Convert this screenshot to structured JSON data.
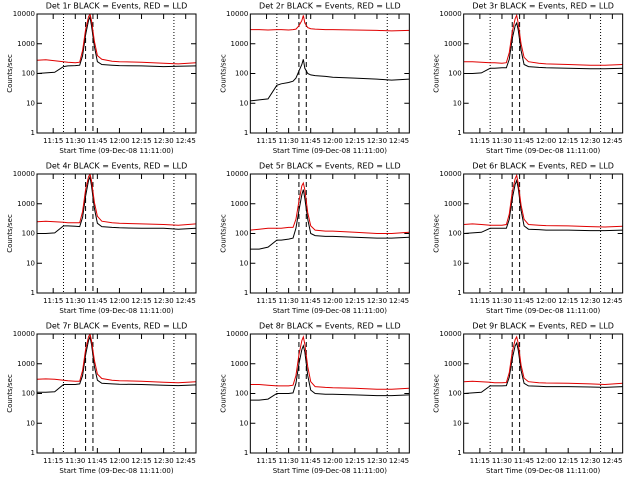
{
  "chart_data": [
    {
      "type": "line",
      "title": "Det 1r BLACK = Events, RED = LLD",
      "xlabel": "Start Time (09-Dec-08 11:11:00)",
      "ylabel": "Counts/sec",
      "ylog": true,
      "xlim": [
        "11:04",
        "12:52"
      ],
      "xticks": [
        "11:15",
        "11:30",
        "11:45",
        "12:00",
        "12:15",
        "12:30",
        "12:45"
      ],
      "ylim": [
        1,
        10000
      ],
      "yticks": [
        1,
        10,
        100,
        1000,
        10000
      ],
      "dotted_lines": [
        "11:22",
        "12:37"
      ],
      "dashed_lines": [
        "11:37",
        "11:42"
      ],
      "x": [
        "11:04",
        "11:10",
        "11:16",
        "11:22",
        "11:25",
        "11:30",
        "11:33",
        "11:35",
        "11:37",
        "11:39",
        "11:40",
        "11:41",
        "11:43",
        "11:45",
        "11:48",
        "11:55",
        "12:00",
        "12:15",
        "12:30",
        "12:40",
        "12:52"
      ],
      "series": [
        {
          "name": "Events",
          "color": "#000000",
          "values": [
            100,
            105,
            110,
            170,
            180,
            185,
            190,
            400,
            2000,
            6000,
            8000,
            4000,
            800,
            250,
            200,
            190,
            185,
            180,
            170,
            175,
            180
          ]
        },
        {
          "name": "LLD",
          "color": "#e00000",
          "values": [
            280,
            290,
            270,
            250,
            240,
            230,
            240,
            600,
            3000,
            8000,
            10000,
            6000,
            1200,
            400,
            300,
            260,
            250,
            240,
            220,
            210,
            230
          ]
        }
      ]
    },
    {
      "type": "line",
      "title": "Det 2r BLACK = Events, RED = LLD",
      "xlabel": "Start Time (09-Dec-08 11:11:00)",
      "ylabel": "Counts/sec",
      "ylog": true,
      "xlim": [
        "11:04",
        "12:52"
      ],
      "xticks": [
        "11:15",
        "11:30",
        "11:45",
        "12:00",
        "12:15",
        "12:30",
        "12:45"
      ],
      "ylim": [
        1,
        10000
      ],
      "yticks": [
        1,
        10,
        100,
        1000,
        10000
      ],
      "dotted_lines": [
        "11:22",
        "12:37"
      ],
      "dashed_lines": [
        "11:37",
        "11:42"
      ],
      "x": [
        "11:04",
        "11:10",
        "11:16",
        "11:22",
        "11:25",
        "11:30",
        "11:33",
        "11:35",
        "11:37",
        "11:39",
        "11:40",
        "11:41",
        "11:43",
        "11:45",
        "11:48",
        "11:55",
        "12:00",
        "12:15",
        "12:30",
        "12:40",
        "12:52"
      ],
      "series": [
        {
          "name": "Events",
          "color": "#000000",
          "values": [
            12,
            13,
            14,
            40,
            45,
            50,
            55,
            70,
            120,
            200,
            300,
            150,
            100,
            90,
            85,
            80,
            75,
            70,
            65,
            60,
            65
          ]
        },
        {
          "name": "LLD",
          "color": "#e00000",
          "values": [
            3000,
            3000,
            2900,
            3000,
            3000,
            2900,
            3000,
            3100,
            4000,
            6000,
            9000,
            5000,
            3500,
            3200,
            3100,
            3000,
            3000,
            2900,
            2800,
            2700,
            2800
          ]
        }
      ]
    },
    {
      "type": "line",
      "title": "Det 3r BLACK = Events, RED = LLD",
      "xlabel": "Start Time (09-Dec-08 11:11:00)",
      "ylabel": "Counts/sec",
      "ylog": true,
      "xlim": [
        "11:04",
        "12:52"
      ],
      "xticks": [
        "11:15",
        "11:30",
        "11:45",
        "12:00",
        "12:15",
        "12:30",
        "12:45"
      ],
      "ylim": [
        1,
        10000
      ],
      "yticks": [
        1,
        10,
        100,
        1000,
        10000
      ],
      "dotted_lines": [
        "11:22",
        "12:37"
      ],
      "dashed_lines": [
        "11:37",
        "11:42"
      ],
      "x": [
        "11:04",
        "11:10",
        "11:16",
        "11:22",
        "11:25",
        "11:30",
        "11:33",
        "11:35",
        "11:37",
        "11:39",
        "11:40",
        "11:41",
        "11:43",
        "11:45",
        "11:48",
        "11:55",
        "12:00",
        "12:15",
        "12:30",
        "12:40",
        "12:52"
      ],
      "series": [
        {
          "name": "Events",
          "color": "#000000",
          "values": [
            100,
            100,
            105,
            150,
            150,
            155,
            155,
            300,
            1500,
            4000,
            5000,
            3000,
            600,
            200,
            170,
            160,
            155,
            150,
            145,
            145,
            150
          ]
        },
        {
          "name": "LLD",
          "color": "#e00000",
          "values": [
            250,
            250,
            240,
            230,
            230,
            220,
            230,
            500,
            2500,
            7000,
            9000,
            5000,
            1000,
            350,
            250,
            220,
            210,
            200,
            190,
            190,
            200
          ]
        }
      ]
    },
    {
      "type": "line",
      "title": "Det 4r BLACK = Events, RED = LLD",
      "xlabel": "Start Time (09-Dec-08 11:11:00)",
      "ylabel": "Counts/sec",
      "ylog": true,
      "xlim": [
        "11:04",
        "12:52"
      ],
      "xticks": [
        "11:15",
        "11:30",
        "11:45",
        "12:00",
        "12:15",
        "12:30",
        "12:45"
      ],
      "ylim": [
        1,
        10000
      ],
      "yticks": [
        1,
        10,
        100,
        1000,
        10000
      ],
      "dotted_lines": [
        "11:22",
        "12:37"
      ],
      "dashed_lines": [
        "11:37",
        "11:42"
      ],
      "x": [
        "11:04",
        "11:10",
        "11:16",
        "11:22",
        "11:25",
        "11:30",
        "11:33",
        "11:35",
        "11:37",
        "11:39",
        "11:40",
        "11:41",
        "11:43",
        "11:45",
        "11:48",
        "11:55",
        "12:00",
        "12:15",
        "12:30",
        "12:40",
        "12:52"
      ],
      "series": [
        {
          "name": "Events",
          "color": "#000000",
          "values": [
            100,
            100,
            105,
            180,
            180,
            175,
            170,
            350,
            1800,
            6000,
            8000,
            4000,
            700,
            220,
            170,
            160,
            155,
            150,
            150,
            140,
            150
          ]
        },
        {
          "name": "LLD",
          "color": "#e00000",
          "values": [
            250,
            260,
            250,
            240,
            230,
            230,
            230,
            550,
            3000,
            8000,
            10000,
            6000,
            1100,
            380,
            260,
            230,
            220,
            210,
            200,
            190,
            210
          ]
        }
      ]
    },
    {
      "type": "line",
      "title": "Det 5r BLACK = Events, RED = LLD",
      "xlabel": "Start Time (09-Dec-08 11:11:00)",
      "ylabel": "Counts/sec",
      "ylog": true,
      "xlim": [
        "11:04",
        "12:52"
      ],
      "xticks": [
        "11:15",
        "11:30",
        "11:45",
        "12:00",
        "12:15",
        "12:30",
        "12:45"
      ],
      "ylim": [
        1,
        10000
      ],
      "yticks": [
        1,
        10,
        100,
        1000,
        10000
      ],
      "dotted_lines": [
        "11:22",
        "12:37"
      ],
      "dashed_lines": [
        "11:37",
        "11:42"
      ],
      "x": [
        "11:04",
        "11:10",
        "11:16",
        "11:22",
        "11:25",
        "11:30",
        "11:33",
        "11:35",
        "11:37",
        "11:39",
        "11:40",
        "11:41",
        "11:43",
        "11:45",
        "11:48",
        "11:55",
        "12:00",
        "12:15",
        "12:30",
        "12:40",
        "12:52"
      ],
      "series": [
        {
          "name": "Events",
          "color": "#000000",
          "values": [
            30,
            30,
            35,
            60,
            60,
            65,
            70,
            150,
            600,
            2000,
            3000,
            1500,
            300,
            100,
            85,
            80,
            80,
            75,
            70,
            70,
            75
          ]
        },
        {
          "name": "LLD",
          "color": "#e00000",
          "values": [
            130,
            140,
            150,
            150,
            150,
            160,
            160,
            300,
            1200,
            4000,
            5000,
            3000,
            500,
            180,
            130,
            120,
            120,
            110,
            100,
            100,
            110
          ]
        }
      ]
    },
    {
      "type": "line",
      "title": "Det 6r BLACK = Events, RED = LLD",
      "xlabel": "Start Time (09-Dec-08 11:11:00)",
      "ylabel": "Counts/sec",
      "ylog": true,
      "xlim": [
        "11:04",
        "12:52"
      ],
      "xticks": [
        "11:15",
        "11:30",
        "11:45",
        "12:00",
        "12:15",
        "12:30",
        "12:45"
      ],
      "ylim": [
        1,
        10000
      ],
      "yticks": [
        1,
        10,
        100,
        1000,
        10000
      ],
      "dotted_lines": [
        "11:22",
        "12:37"
      ],
      "dashed_lines": [
        "11:37",
        "11:42"
      ],
      "x": [
        "11:04",
        "11:10",
        "11:16",
        "11:22",
        "11:25",
        "11:30",
        "11:33",
        "11:35",
        "11:37",
        "11:39",
        "11:40",
        "11:41",
        "11:43",
        "11:45",
        "11:48",
        "11:55",
        "12:00",
        "12:15",
        "12:30",
        "12:40",
        "12:52"
      ],
      "series": [
        {
          "name": "Events",
          "color": "#000000",
          "values": [
            100,
            105,
            110,
            150,
            150,
            150,
            150,
            300,
            1500,
            4500,
            6000,
            3500,
            600,
            180,
            140,
            135,
            130,
            130,
            125,
            125,
            130
          ]
        },
        {
          "name": "LLD",
          "color": "#e00000",
          "values": [
            200,
            210,
            200,
            190,
            190,
            190,
            200,
            450,
            2500,
            7000,
            9000,
            5000,
            900,
            300,
            200,
            190,
            185,
            180,
            170,
            165,
            175
          ]
        }
      ]
    },
    {
      "type": "line",
      "title": "Det 7r BLACK = Events, RED = LLD",
      "xlabel": "Start Time (09-Dec-08 11:11:00)",
      "ylabel": "Counts/sec",
      "ylog": true,
      "xlim": [
        "11:04",
        "12:52"
      ],
      "xticks": [
        "11:15",
        "11:30",
        "11:45",
        "12:00",
        "12:15",
        "12:30",
        "12:45"
      ],
      "ylim": [
        1,
        10000
      ],
      "yticks": [
        1,
        10,
        100,
        1000,
        10000
      ],
      "dotted_lines": [
        "11:22",
        "12:37"
      ],
      "dashed_lines": [
        "11:37",
        "11:42"
      ],
      "x": [
        "11:04",
        "11:10",
        "11:16",
        "11:22",
        "11:25",
        "11:30",
        "11:33",
        "11:35",
        "11:37",
        "11:39",
        "11:40",
        "11:41",
        "11:43",
        "11:45",
        "11:48",
        "11:55",
        "12:00",
        "12:15",
        "12:30",
        "12:40",
        "12:52"
      ],
      "series": [
        {
          "name": "Events",
          "color": "#000000",
          "values": [
            110,
            110,
            115,
            200,
            200,
            200,
            210,
            400,
            2000,
            6000,
            8000,
            4500,
            800,
            280,
            220,
            210,
            205,
            200,
            190,
            185,
            195
          ]
        },
        {
          "name": "LLD",
          "color": "#e00000",
          "values": [
            300,
            310,
            300,
            280,
            270,
            260,
            260,
            600,
            3000,
            8000,
            10000,
            6000,
            1300,
            450,
            320,
            280,
            270,
            260,
            240,
            230,
            250
          ]
        }
      ]
    },
    {
      "type": "line",
      "title": "Det 8r BLACK = Events, RED = LLD",
      "xlabel": "Start Time (09-Dec-08 11:11:00)",
      "ylabel": "Counts/sec",
      "ylog": true,
      "xlim": [
        "11:04",
        "12:52"
      ],
      "xticks": [
        "11:15",
        "11:30",
        "11:45",
        "12:00",
        "12:15",
        "12:30",
        "12:45"
      ],
      "ylim": [
        1,
        10000
      ],
      "yticks": [
        1,
        10,
        100,
        1000,
        10000
      ],
      "dotted_lines": [
        "11:22",
        "12:37"
      ],
      "dashed_lines": [
        "11:37",
        "11:42"
      ],
      "x": [
        "11:04",
        "11:10",
        "11:16",
        "11:22",
        "11:25",
        "11:30",
        "11:33",
        "11:35",
        "11:37",
        "11:39",
        "11:40",
        "11:41",
        "11:43",
        "11:45",
        "11:48",
        "11:55",
        "12:00",
        "12:15",
        "12:30",
        "12:40",
        "12:52"
      ],
      "series": [
        {
          "name": "Events",
          "color": "#000000",
          "values": [
            60,
            60,
            65,
            100,
            100,
            100,
            105,
            220,
            1000,
            3000,
            4000,
            2500,
            400,
            130,
            100,
            95,
            95,
            90,
            85,
            85,
            90
          ]
        },
        {
          "name": "LLD",
          "color": "#e00000",
          "values": [
            200,
            200,
            190,
            180,
            180,
            180,
            190,
            400,
            2000,
            6000,
            8000,
            4500,
            800,
            250,
            170,
            160,
            155,
            150,
            140,
            140,
            150
          ]
        }
      ]
    },
    {
      "type": "line",
      "title": "Det 9r BLACK = Events, RED = LLD",
      "xlabel": "Start Time (09-Dec-08 11:11:00)",
      "ylabel": "Counts/sec",
      "ylog": true,
      "xlim": [
        "11:04",
        "12:52"
      ],
      "xticks": [
        "11:15",
        "11:30",
        "11:45",
        "12:00",
        "12:15",
        "12:30",
        "12:45"
      ],
      "ylim": [
        1,
        10000
      ],
      "yticks": [
        1,
        10,
        100,
        1000,
        10000
      ],
      "dotted_lines": [
        "11:22",
        "12:37"
      ],
      "dashed_lines": [
        "11:37",
        "11:42"
      ],
      "x": [
        "11:04",
        "11:10",
        "11:16",
        "11:22",
        "11:25",
        "11:30",
        "11:33",
        "11:35",
        "11:37",
        "11:39",
        "11:40",
        "11:41",
        "11:43",
        "11:45",
        "11:48",
        "11:55",
        "12:00",
        "12:15",
        "12:30",
        "12:40",
        "12:52"
      ],
      "series": [
        {
          "name": "Events",
          "color": "#000000",
          "values": [
            100,
            105,
            110,
            180,
            180,
            180,
            185,
            350,
            1500,
            4000,
            5000,
            3000,
            600,
            220,
            180,
            175,
            170,
            170,
            165,
            160,
            170
          ]
        },
        {
          "name": "LLD",
          "color": "#e00000",
          "values": [
            250,
            260,
            250,
            240,
            230,
            230,
            235,
            500,
            2500,
            6500,
            8000,
            5000,
            900,
            330,
            250,
            230,
            225,
            220,
            210,
            200,
            220
          ]
        }
      ]
    }
  ]
}
